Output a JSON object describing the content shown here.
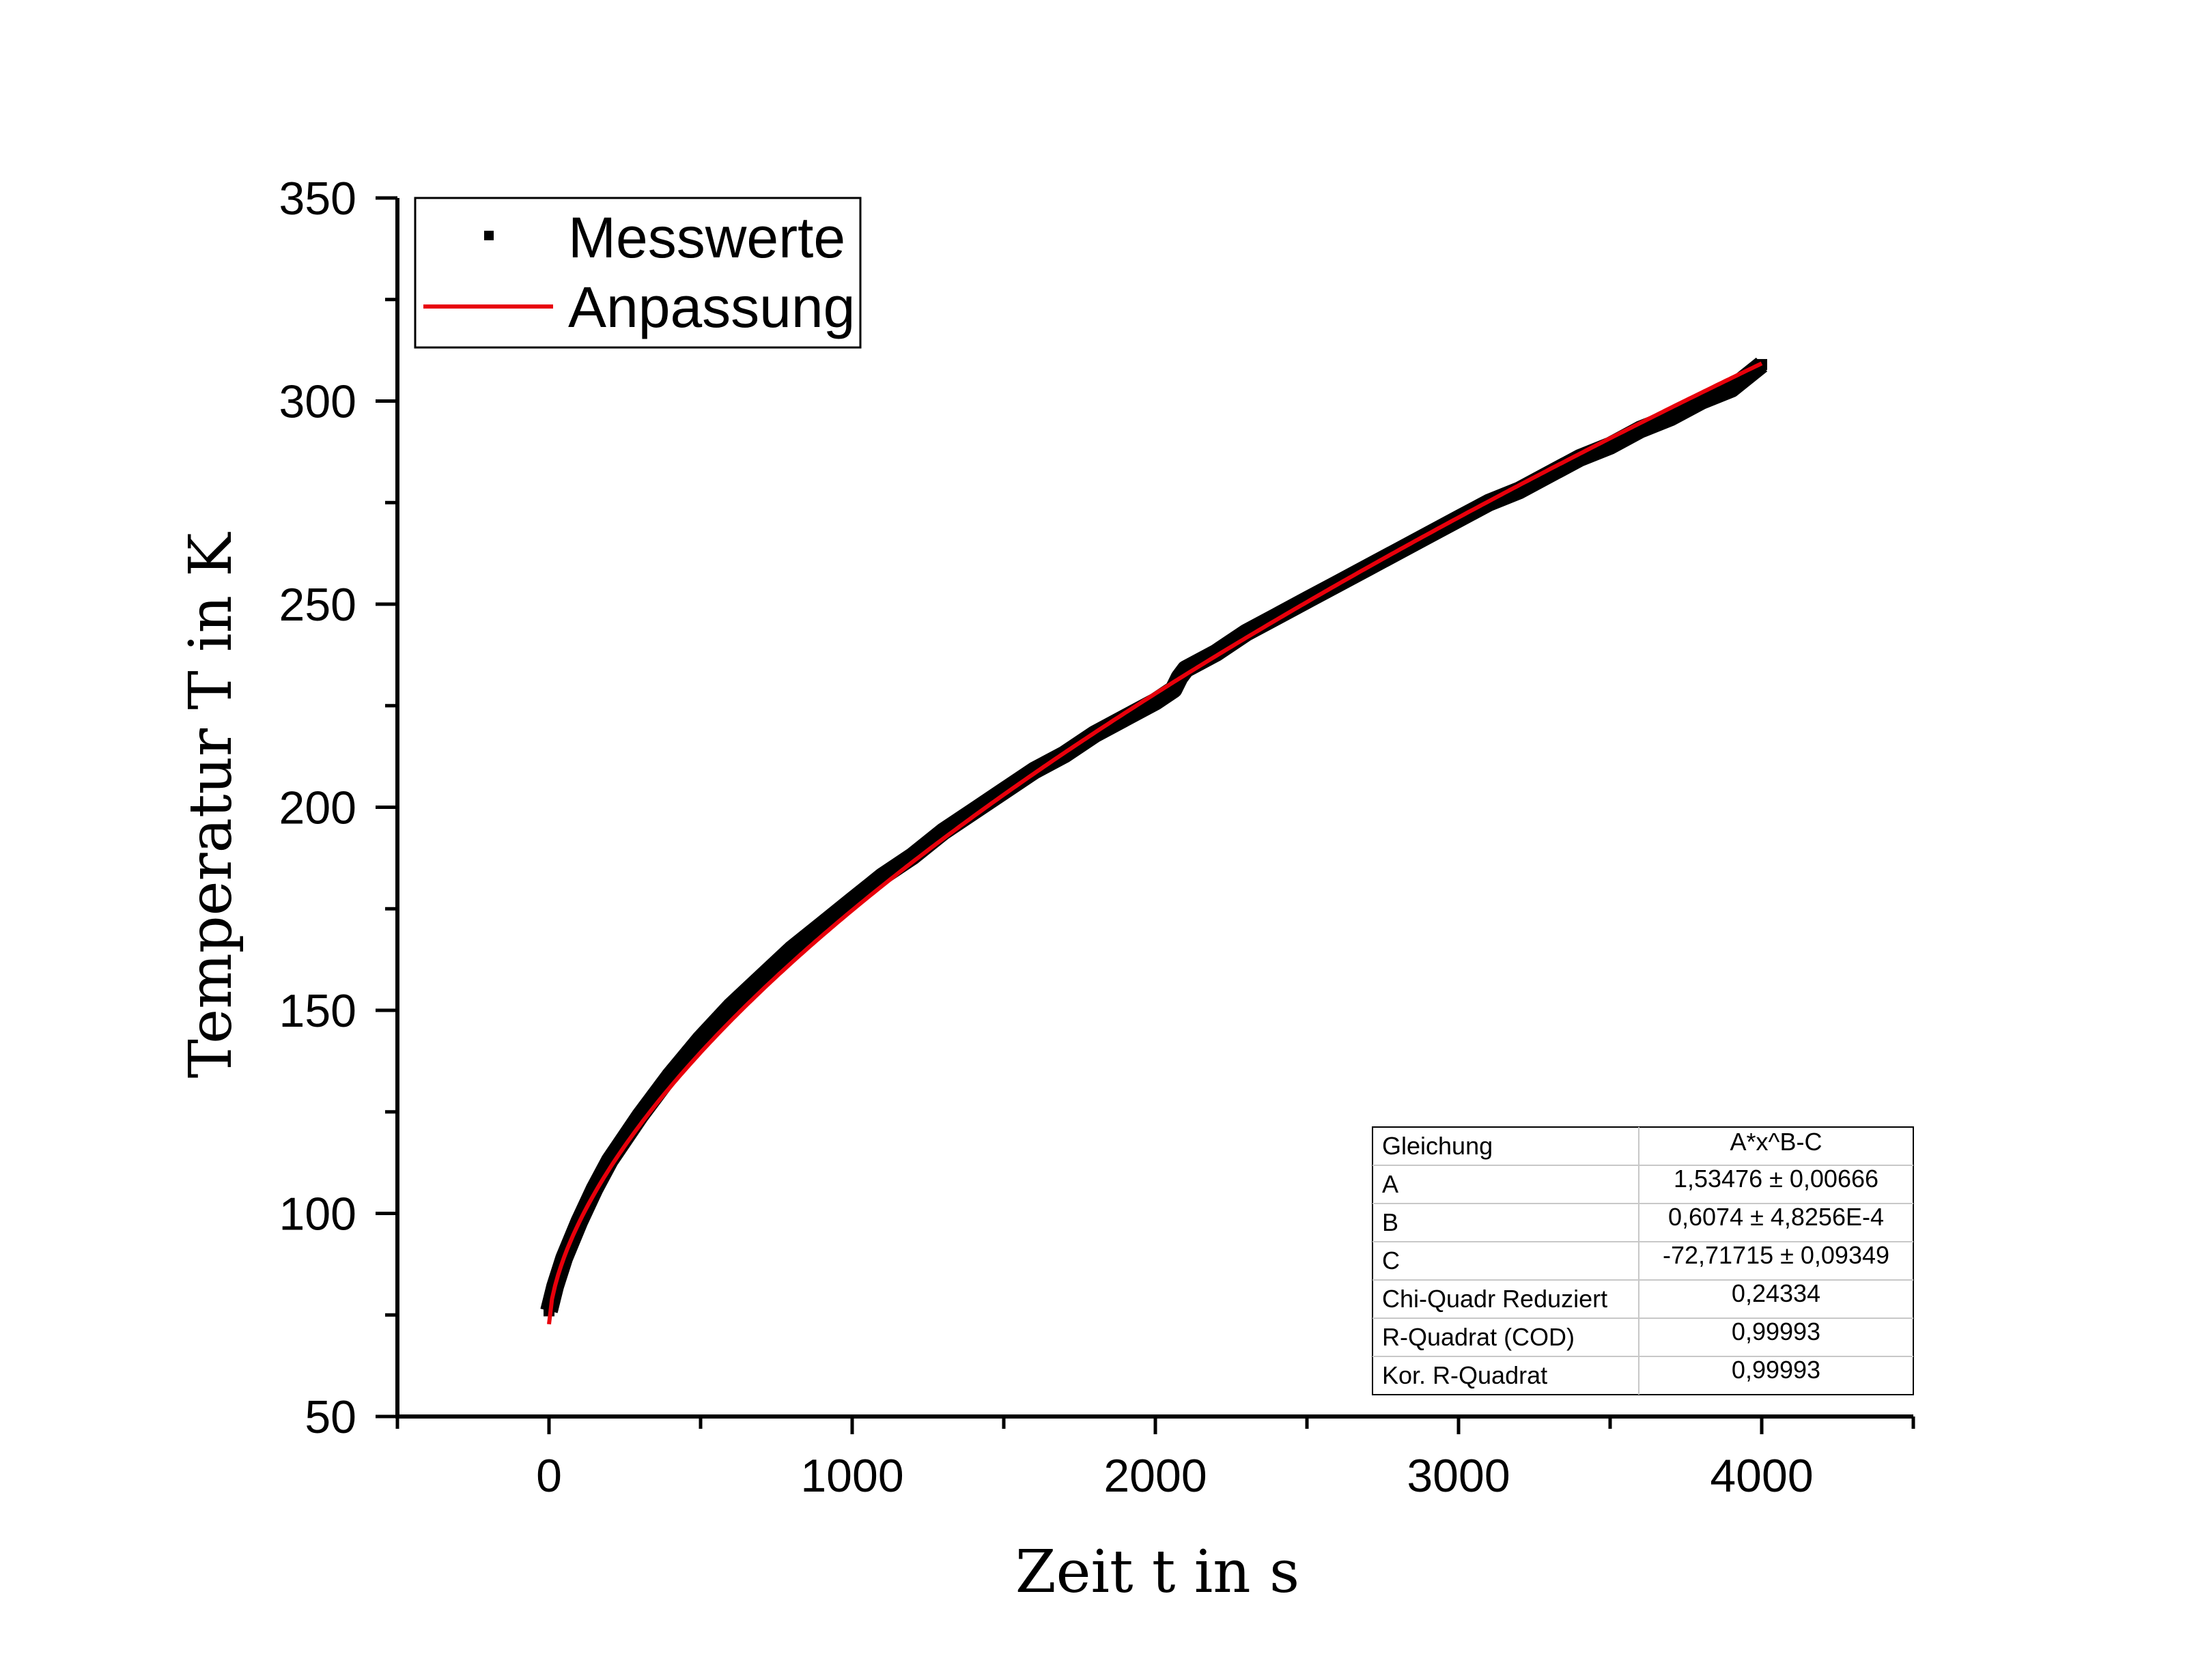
{
  "chart_data": {
    "type": "scatter",
    "xlabel": "Zeit t in s",
    "ylabel": "Temperatur T in K",
    "xlim": [
      -500,
      4500
    ],
    "ylim": [
      50,
      350
    ],
    "xticks": [
      0,
      1000,
      2000,
      3000,
      4000
    ],
    "yticks": [
      50,
      100,
      150,
      200,
      250,
      300,
      350
    ],
    "grid": false,
    "legend": {
      "placement": "top-left",
      "entries": [
        {
          "label": "Messwerte",
          "marker": "square",
          "color": "#000000"
        },
        {
          "label": "Anpassung",
          "marker": "line",
          "color": "#e8000b"
        }
      ]
    },
    "series": [
      {
        "name": "Messwerte",
        "color": "#000000",
        "x": [
          0,
          20,
          50,
          100,
          150,
          200,
          300,
          400,
          500,
          600,
          700,
          800,
          900,
          1000,
          1100,
          1200,
          1300,
          1400,
          1500,
          1600,
          1700,
          1800,
          1900,
          2000,
          2060,
          2080,
          2100,
          2200,
          2300,
          2400,
          2500,
          2600,
          2700,
          2800,
          2900,
          3000,
          3100,
          3200,
          3300,
          3400,
          3500,
          3600,
          3700,
          3800,
          3900,
          4000
        ],
        "y": [
          76,
          82,
          89,
          98,
          106,
          113,
          124,
          134,
          143,
          151,
          158,
          165,
          171,
          177,
          183,
          188,
          194,
          199,
          204,
          209,
          213,
          218,
          222,
          226,
          229,
          232,
          234,
          238,
          243,
          247,
          251,
          255,
          259,
          263,
          267,
          271,
          275,
          278,
          282,
          286,
          289,
          293,
          296,
          300,
          303,
          309
        ]
      },
      {
        "name": "Anpassung",
        "color": "#e8000b",
        "fit": {
          "equation": "A*x^B-C",
          "A": 1.53476,
          "B": 0.6074,
          "C": -72.71715
        },
        "x_range": [
          0,
          4000
        ]
      }
    ],
    "fit_table": {
      "rows": [
        {
          "label": "Gleichung",
          "value": "A*x^B-C"
        },
        {
          "label": "A",
          "value": "1,53476 ± 0,00666"
        },
        {
          "label": "B",
          "value": "0,6074 ± 4,8256E-4"
        },
        {
          "label": "C",
          "value": "-72,71715 ± 0,09349"
        },
        {
          "label": "Chi-Quadr Reduziert",
          "value": "0,24334"
        },
        {
          "label": "R-Quadrat (COD)",
          "value": "0,99993"
        },
        {
          "label": "Kor. R-Quadrat",
          "value": "0,99993"
        }
      ]
    }
  }
}
